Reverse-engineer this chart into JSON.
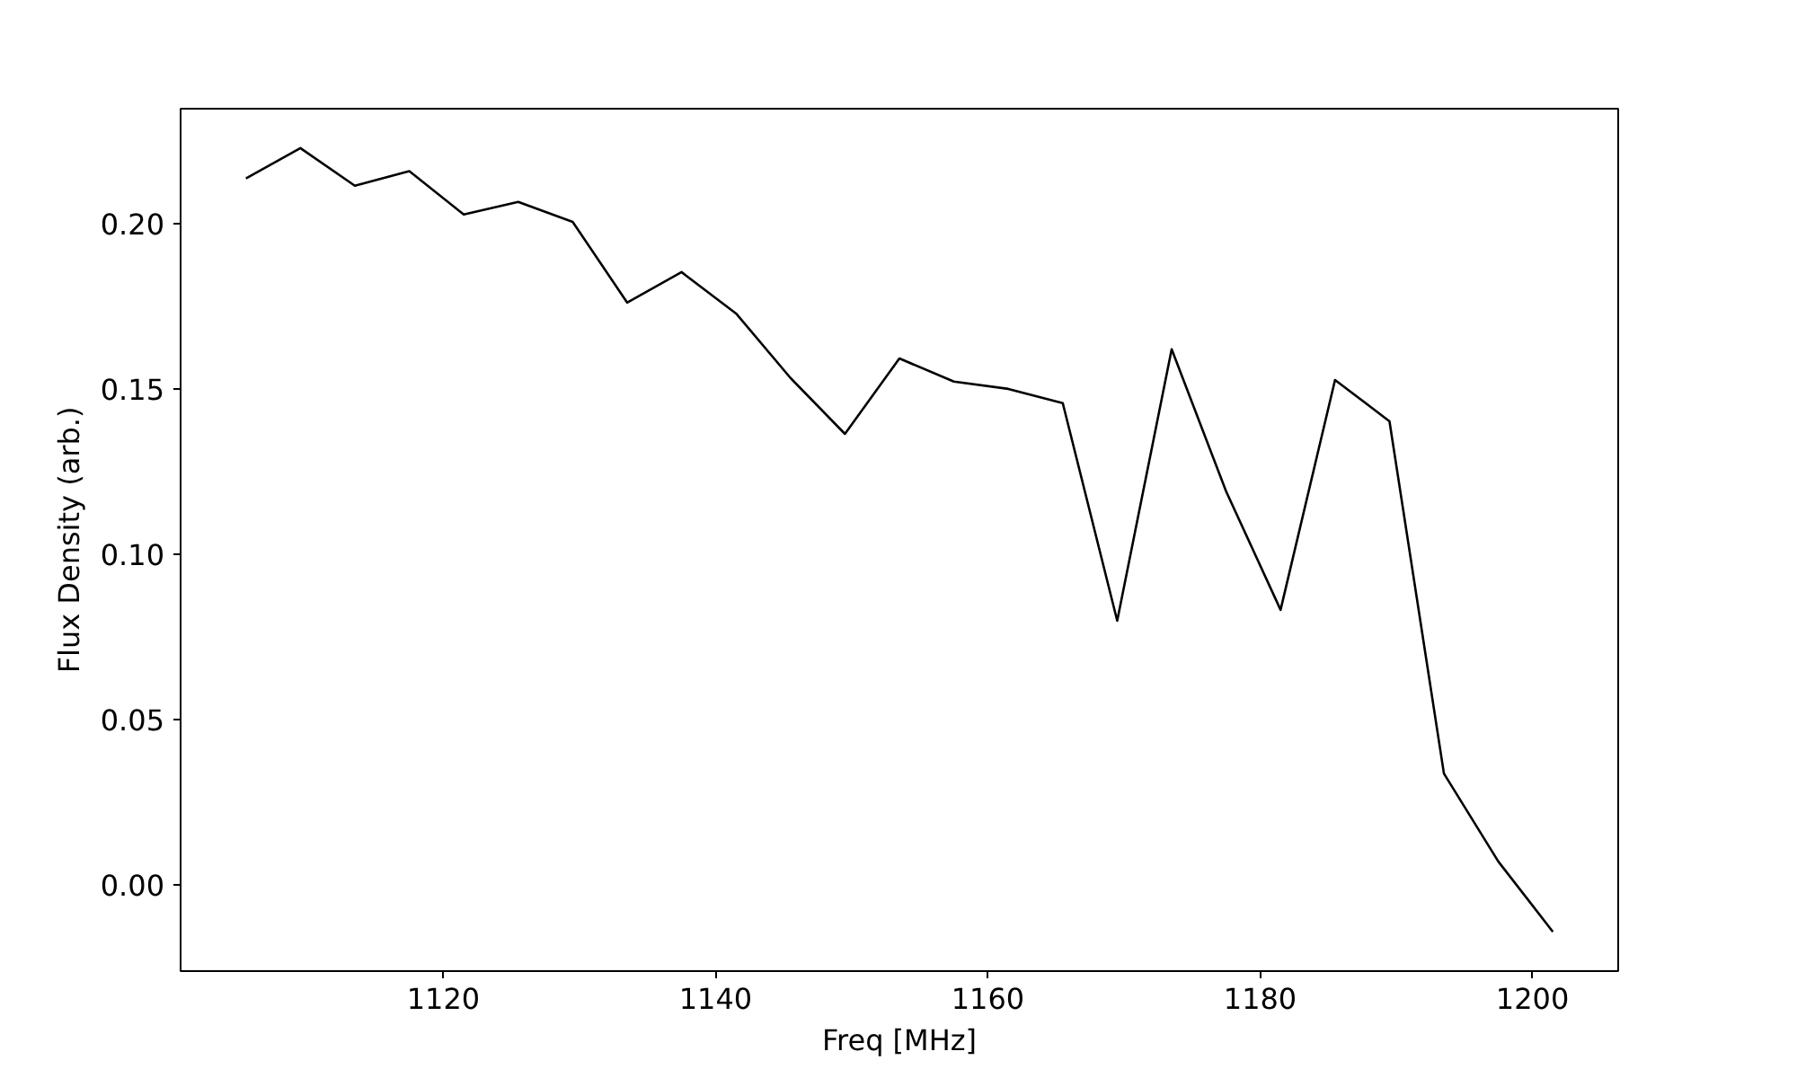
{
  "chart_data": {
    "type": "line",
    "xlabel": "Freq [MHz]",
    "ylabel": "Flux Density (arb.)",
    "x": [
      1105.5,
      1109.5,
      1113.5,
      1117.5,
      1121.5,
      1125.5,
      1129.5,
      1133.5,
      1137.5,
      1141.5,
      1145.5,
      1149.5,
      1153.5,
      1157.5,
      1161.5,
      1165.5,
      1169.5,
      1173.5,
      1177.5,
      1181.5,
      1185.5,
      1189.5,
      1193.5,
      1197.5,
      1201.5
    ],
    "series": [
      {
        "color": "#000000",
        "values": [
          0.2136,
          0.2228,
          0.2114,
          0.2158,
          0.2027,
          0.2065,
          0.2005,
          0.1761,
          0.1853,
          0.1728,
          0.1533,
          0.1364,
          0.1592,
          0.1522,
          0.15,
          0.1457,
          0.0799,
          0.162,
          0.119,
          0.0832,
          0.1527,
          0.1402,
          0.0337,
          0.0071,
          -0.0141
        ]
      }
    ],
    "xlim": [
      1100.7,
      1206.3
    ],
    "ylim": [
      -0.026,
      0.2347
    ],
    "xticks": [
      1120,
      1140,
      1160,
      1180,
      1200
    ],
    "yticks": [
      {
        "value": 0,
        "label": "0.00"
      },
      {
        "value": 0.05,
        "label": "0.05"
      },
      {
        "value": 0.1,
        "label": "0.10"
      },
      {
        "value": 0.15,
        "label": "0.15"
      },
      {
        "value": 0.2,
        "label": "0.20"
      }
    ],
    "grid": false
  }
}
